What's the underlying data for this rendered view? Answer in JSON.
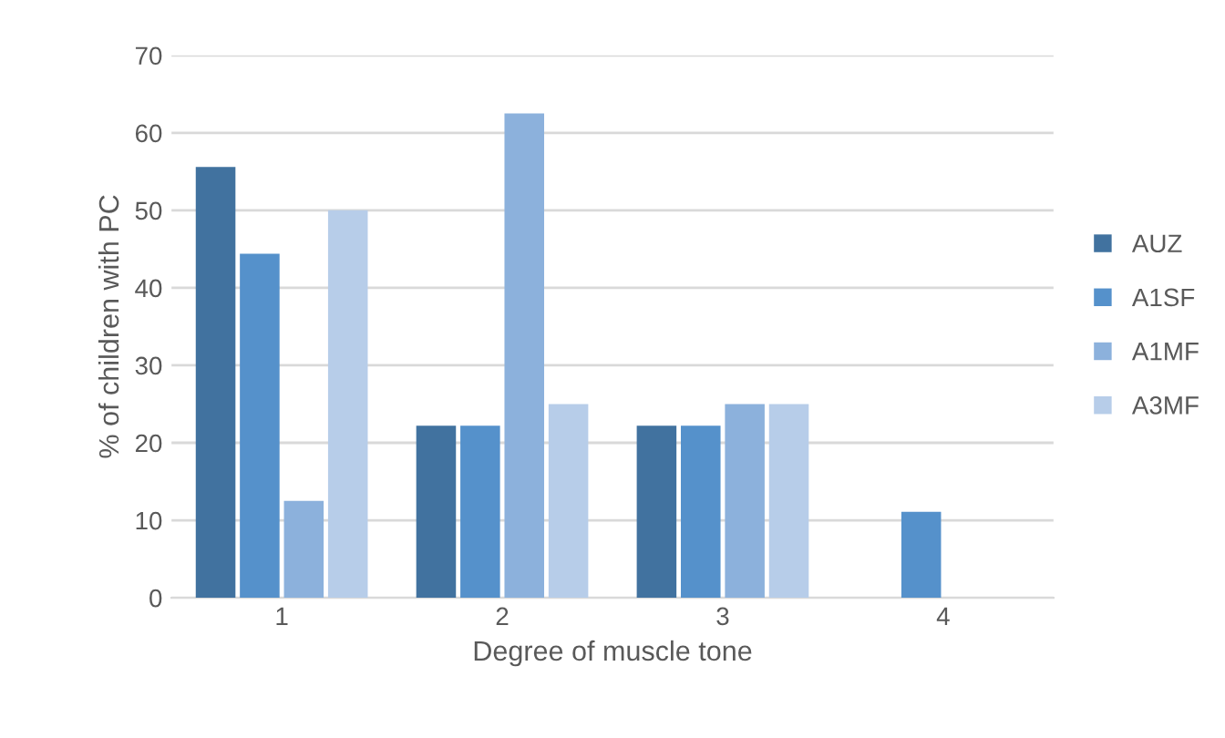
{
  "chart_data": {
    "type": "bar",
    "xlabel": "Degree of muscle tone",
    "ylabel": "% of children with PC",
    "categories": [
      "1",
      "2",
      "3",
      "4"
    ],
    "series": [
      {
        "name": "AUZ",
        "color": "#41729f",
        "values": [
          55.6,
          22.2,
          22.2,
          0
        ]
      },
      {
        "name": "A1SF",
        "color": "#5591cb",
        "values": [
          44.4,
          22.2,
          22.2,
          11.1
        ]
      },
      {
        "name": "A1MF",
        "color": "#8cb1dc",
        "values": [
          12.5,
          62.5,
          25,
          0
        ]
      },
      {
        "name": "A3MF",
        "color": "#b7cde9",
        "values": [
          50,
          25,
          25,
          0
        ]
      }
    ],
    "ylim": [
      0,
      70
    ],
    "yticks": [
      0,
      10,
      20,
      30,
      40,
      50,
      60,
      70
    ],
    "grid": "y",
    "legend": "right"
  }
}
